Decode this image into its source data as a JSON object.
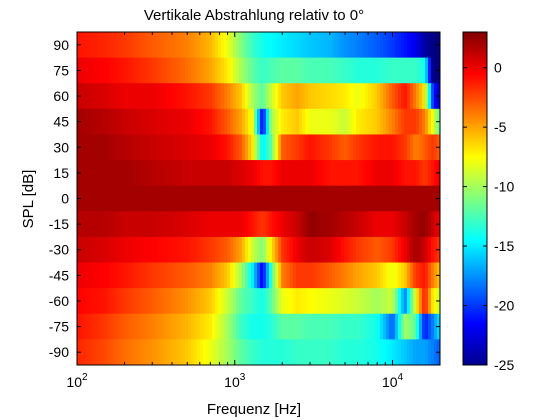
{
  "chart_data": {
    "type": "heatmap",
    "title": "Vertikale Abstrahlung relativ to 0°",
    "xlabel": "Frequenz [Hz]",
    "ylabel": "SPL [dB]",
    "x_scale": "log",
    "xlim": [
      100,
      20000
    ],
    "x_ticks": [
      {
        "value": 100,
        "base": "10",
        "exp": "2"
      },
      {
        "value": 1000,
        "base": "10",
        "exp": "3"
      },
      {
        "value": 10000,
        "base": "10",
        "exp": "4"
      }
    ],
    "y_ticks": [
      "90",
      "75",
      "60",
      "45",
      "30",
      "15",
      "0",
      "-15",
      "-30",
      "-45",
      "-60",
      "-75",
      "-90"
    ],
    "colorbar": {
      "min": -25,
      "max": 3,
      "ticks": [
        "0",
        "-5",
        "-10",
        "-15",
        "-20",
        "-25"
      ],
      "tick_values": [
        0,
        -5,
        -10,
        -15,
        -20,
        -25
      ],
      "colormap": "jet"
    },
    "frequencies_hz": [
      100,
      150,
      200,
      300,
      500,
      700,
      900,
      1100,
      1300,
      1500,
      1700,
      2000,
      2500,
      3000,
      4000,
      5000,
      6000,
      8000,
      10000,
      12000,
      14000,
      16000,
      18000,
      20000
    ],
    "rows": [
      {
        "angle": "90",
        "values": [
          -1,
          -1.5,
          -2,
          -3,
          -4,
          -5.5,
          -8,
          -11,
          -13,
          -14,
          -14.5,
          -15,
          -15.5,
          -16,
          -16.5,
          -17.5,
          -18,
          -19,
          -20,
          -21,
          -22,
          -24,
          -25,
          -25
        ]
      },
      {
        "angle": "75",
        "values": [
          0,
          -0.5,
          -1,
          -2,
          -3.5,
          -5,
          -7,
          -10,
          -12,
          -13,
          -12.5,
          -12,
          -12,
          -12.5,
          -12.5,
          -13,
          -13.5,
          -13.5,
          -13,
          -13,
          -13,
          -14,
          -25,
          -25
        ]
      },
      {
        "angle": "60",
        "values": [
          1,
          0.5,
          0,
          0,
          -1,
          -2,
          -4,
          -6,
          -10,
          -12,
          -9,
          -6,
          -5,
          -6,
          -6.5,
          -7,
          -8,
          -6,
          -3,
          -1,
          -4,
          -7,
          -20,
          -24
        ]
      },
      {
        "angle": "45",
        "values": [
          2,
          1.5,
          1,
          0.5,
          0,
          -1,
          -3,
          -5,
          -8,
          -22,
          -10,
          -7,
          -6,
          -8,
          -8,
          -9,
          -7,
          -6,
          -4,
          -2,
          -2,
          -4,
          -8,
          -12
        ]
      },
      {
        "angle": "30",
        "values": [
          2,
          2,
          1.5,
          1,
          0.5,
          0,
          -1,
          -3,
          -7,
          -15,
          -12,
          -3,
          -2,
          -1,
          -2,
          -3,
          -2,
          -1,
          -1,
          -2,
          -4,
          -3,
          -2,
          -3
        ]
      },
      {
        "angle": "15",
        "values": [
          2,
          2,
          2,
          1.5,
          1,
          1,
          1,
          0.5,
          0,
          -1,
          -1,
          0,
          0,
          0,
          -1,
          -1,
          -1,
          0,
          0,
          -1,
          -1,
          -2,
          -1,
          0
        ]
      },
      {
        "angle": "0",
        "values": [
          2,
          2,
          2,
          2,
          2,
          2,
          2,
          2,
          2,
          2,
          2,
          2,
          2,
          2,
          2,
          2,
          2,
          2,
          2,
          2,
          2,
          2,
          2,
          2
        ]
      },
      {
        "angle": "-15",
        "values": [
          1.5,
          1.5,
          1,
          1,
          0.5,
          0,
          0,
          0,
          -1,
          -2,
          -1,
          0,
          1,
          2.5,
          2,
          1.5,
          1,
          0,
          0,
          1,
          2,
          2.5,
          1,
          0
        ]
      },
      {
        "angle": "-30",
        "values": [
          1,
          0.5,
          0,
          -0.5,
          -1,
          -2,
          -3,
          -5,
          -9,
          -11,
          -7,
          -2,
          0,
          1,
          0.5,
          -1,
          -2,
          -3,
          -2,
          0,
          2,
          1,
          -1,
          -2
        ]
      },
      {
        "angle": "-45",
        "values": [
          0,
          -0.5,
          -1,
          -2,
          -3,
          -4,
          -6,
          -10,
          -15,
          -22,
          -13,
          -4,
          -2,
          -2,
          -3,
          -4,
          -5,
          -6,
          -8,
          -6,
          -2,
          -1,
          -4,
          -6
        ]
      },
      {
        "angle": "-60",
        "values": [
          -0.5,
          -1,
          -2,
          -3,
          -4.5,
          -6,
          -9,
          -12,
          -13,
          -14,
          -12,
          -8,
          -7,
          -7.5,
          -8,
          -8.5,
          -9,
          -10,
          -9,
          -18,
          -8,
          -1,
          -7,
          -9
        ]
      },
      {
        "angle": "-75",
        "values": [
          -1,
          -2,
          -3,
          -4,
          -5.5,
          -7,
          -10,
          -13,
          -14,
          -14,
          -13.5,
          -12,
          -12,
          -12.5,
          -12.5,
          -13,
          -13,
          -14,
          -19,
          -10,
          -12,
          -21,
          -18,
          -15
        ]
      },
      {
        "angle": "-90",
        "values": [
          -1.5,
          -2.5,
          -3.5,
          -4.5,
          -6,
          -8,
          -10,
          -12,
          -13,
          -13.5,
          -13.5,
          -13.5,
          -13,
          -13,
          -13,
          -13.5,
          -13.5,
          -14,
          -15,
          -16,
          -17,
          -17,
          -18,
          -19
        ]
      }
    ]
  }
}
